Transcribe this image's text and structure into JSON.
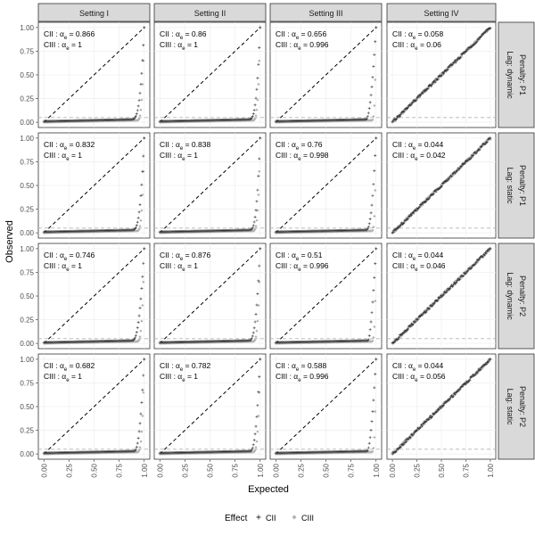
{
  "chart_data": {
    "type": "scatter",
    "title": "",
    "xlabel": "Expected",
    "ylabel": "Observed",
    "xlim": [
      0,
      1
    ],
    "ylim": [
      0,
      1
    ],
    "x_ticks": [
      "0.00",
      "0.25",
      "0.50",
      "0.75",
      "1.00"
    ],
    "y_ticks": [
      "0.00",
      "0.25",
      "0.50",
      "0.75",
      "1.00"
    ],
    "grid": true,
    "reference_line": {
      "type": "y=x",
      "style": "dashed",
      "color": "#000000"
    },
    "threshold_line": {
      "y": 0.05,
      "style": "dashed",
      "color": "#b3b3b3"
    },
    "columns": [
      "Setting I",
      "Setting II",
      "Setting III",
      "Setting IV"
    ],
    "rows": [
      "Penalty: P1\nLag: dynamic",
      "Penalty: P1\nLag: static",
      "Penalty: P2\nLag: dynamic",
      "Penalty: P2\nLag: static"
    ],
    "legend": {
      "title": "Effect",
      "position": "bottom",
      "items": [
        {
          "label": "CII",
          "marker": "+",
          "color": "#333333"
        },
        {
          "label": "CIII",
          "marker": "◆",
          "color": "#b3b3b3"
        }
      ]
    },
    "annotation_prefixes": [
      "CII :",
      "CIII :"
    ],
    "annotation_symbol": "α",
    "annotation_subscript": "e",
    "annotations": [
      [
        [
          "0.866",
          "1"
        ],
        [
          "0.86",
          "1"
        ],
        [
          "0.656",
          "0.996"
        ],
        [
          "0.058",
          "0.06"
        ]
      ],
      [
        [
          "0.832",
          "1"
        ],
        [
          "0.838",
          "1"
        ],
        [
          "0.76",
          "0.998"
        ],
        [
          "0.044",
          "0.042"
        ]
      ],
      [
        [
          "0.746",
          "1"
        ],
        [
          "0.876",
          "1"
        ],
        [
          "0.51",
          "0.996"
        ],
        [
          "0.044",
          "0.046"
        ]
      ],
      [
        [
          "0.682",
          "1"
        ],
        [
          "0.782",
          "1"
        ],
        [
          "0.588",
          "0.996"
        ],
        [
          "0.044",
          "0.056"
        ]
      ]
    ],
    "curve_shapes": [
      [
        {
          "CII": {
            "knee": 0.87,
            "power": 22,
            "floor": 0.01
          },
          "CIII": {
            "knee": 0.92,
            "power": 30,
            "floor": 0.0
          }
        },
        {
          "CII": {
            "knee": 0.88,
            "power": 24,
            "floor": 0.01
          },
          "CIII": {
            "knee": 0.92,
            "power": 30,
            "floor": 0.0
          }
        },
        {
          "CII": {
            "knee": 0.9,
            "power": 9,
            "floor": 0.01
          },
          "CIII": {
            "knee": 0.95,
            "power": 35,
            "floor": 0.0
          }
        },
        {
          "CII": {
            "knee": 1.0,
            "power": 1,
            "floor": 0.0
          },
          "CIII": {
            "knee": 1.0,
            "power": 1,
            "floor": 0.0
          }
        }
      ],
      [
        {
          "CII": {
            "knee": 0.88,
            "power": 20,
            "floor": 0.01
          },
          "CIII": {
            "knee": 0.92,
            "power": 30,
            "floor": 0.0
          }
        },
        {
          "CII": {
            "knee": 0.89,
            "power": 22,
            "floor": 0.01
          },
          "CIII": {
            "knee": 0.92,
            "power": 30,
            "floor": 0.0
          }
        },
        {
          "CII": {
            "knee": 0.9,
            "power": 14,
            "floor": 0.01
          },
          "CIII": {
            "knee": 0.95,
            "power": 35,
            "floor": 0.0
          }
        },
        {
          "CII": {
            "knee": 1.0,
            "power": 1,
            "floor": 0.0
          },
          "CIII": {
            "knee": 1.0,
            "power": 1,
            "floor": 0.0
          }
        }
      ],
      [
        {
          "CII": {
            "knee": 0.88,
            "power": 14,
            "floor": 0.01
          },
          "CIII": {
            "knee": 0.92,
            "power": 30,
            "floor": 0.0
          }
        },
        {
          "CII": {
            "knee": 0.89,
            "power": 16,
            "floor": 0.01
          },
          "CIII": {
            "knee": 0.92,
            "power": 30,
            "floor": 0.0
          }
        },
        {
          "CII": {
            "knee": 0.92,
            "power": 6,
            "floor": 0.01
          },
          "CIII": {
            "knee": 0.95,
            "power": 35,
            "floor": 0.0
          }
        },
        {
          "CII": {
            "knee": 1.0,
            "power": 1,
            "floor": 0.0
          },
          "CIII": {
            "knee": 1.0,
            "power": 1,
            "floor": 0.0
          }
        }
      ],
      [
        {
          "CII": {
            "knee": 0.9,
            "power": 12,
            "floor": 0.01
          },
          "CIII": {
            "knee": 0.92,
            "power": 30,
            "floor": 0.0
          }
        },
        {
          "CII": {
            "knee": 0.9,
            "power": 14,
            "floor": 0.01
          },
          "CIII": {
            "knee": 0.92,
            "power": 30,
            "floor": 0.0
          }
        },
        {
          "CII": {
            "knee": 0.91,
            "power": 8,
            "floor": 0.01
          },
          "CIII": {
            "knee": 0.95,
            "power": 35,
            "floor": 0.0
          }
        },
        {
          "CII": {
            "knee": 1.0,
            "power": 1,
            "floor": 0.0
          },
          "CIII": {
            "knee": 1.0,
            "power": 1,
            "floor": 0.0
          }
        }
      ]
    ]
  }
}
